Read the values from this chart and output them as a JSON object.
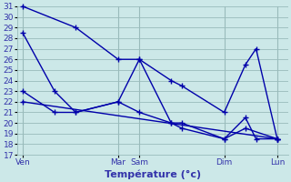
{
  "background_color": "#cce8e8",
  "line_color": "#0000aa",
  "grid_color": "#99bbbb",
  "ylim": [
    17,
    31
  ],
  "yticks": [
    17,
    18,
    19,
    20,
    21,
    22,
    23,
    24,
    25,
    26,
    27,
    28,
    29,
    30,
    31
  ],
  "xlabel": "Température (°c)",
  "xlabel_color": "#3333aa",
  "xlabel_fontsize": 8,
  "tick_label_color": "#3333aa",
  "tick_fontsize": 6.5,
  "day_labels": [
    "Ven",
    "Mar",
    "Sam",
    "Dim",
    "Lun"
  ],
  "day_x": [
    0,
    9,
    11,
    19,
    24
  ],
  "xlim": [
    -0.5,
    25
  ],
  "series": [
    {
      "x": [
        0,
        5,
        9,
        11,
        14,
        15,
        19,
        21,
        22,
        24
      ],
      "y": [
        31,
        29,
        26,
        26,
        24,
        23.5,
        21,
        25.5,
        27,
        18.5
      ]
    },
    {
      "x": [
        0,
        3,
        5,
        9,
        11,
        14,
        15,
        19,
        21,
        22,
        24
      ],
      "y": [
        28.5,
        23,
        21,
        22,
        26,
        20,
        20,
        18.5,
        20.5,
        18.5,
        18.5
      ]
    },
    {
      "x": [
        0,
        3,
        5,
        9,
        11,
        14,
        15,
        19,
        21,
        24
      ],
      "y": [
        23,
        21,
        21,
        22,
        21,
        20,
        19.5,
        18.5,
        19.5,
        18.5
      ]
    },
    {
      "x": [
        0,
        24
      ],
      "y": [
        22,
        18.5
      ]
    }
  ],
  "marker": "+",
  "marker_size": 4,
  "linewidth": 1.0
}
